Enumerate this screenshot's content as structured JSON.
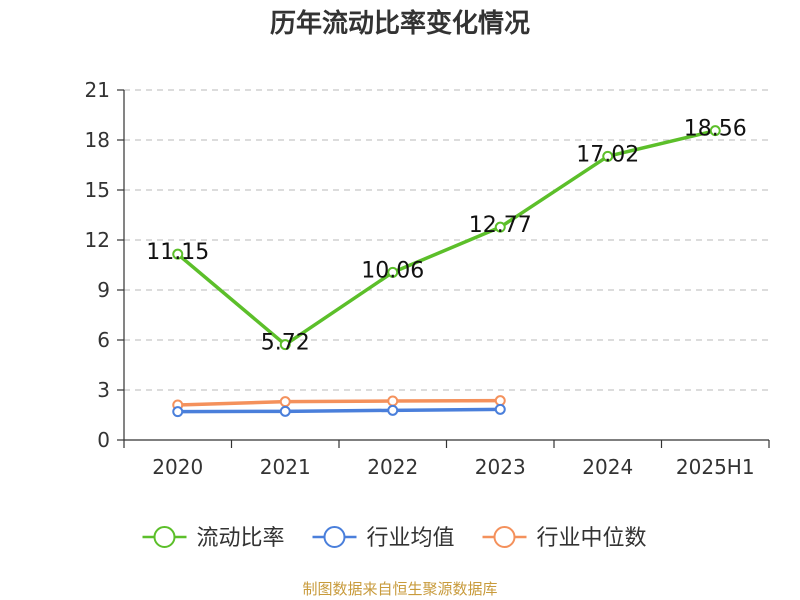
{
  "chart_data": {
    "type": "line",
    "title": "历年流动比率变化情况",
    "xlabel": "",
    "ylabel": "",
    "categories": [
      "2020",
      "2021",
      "2022",
      "2023",
      "2024",
      "2025H1"
    ],
    "ylim": [
      0,
      21
    ],
    "yticks": [
      0,
      3,
      6,
      9,
      12,
      15,
      18,
      21
    ],
    "grid": true,
    "legend_position": "bottom",
    "series": [
      {
        "name": "流动比率",
        "color": "#5cbf2a",
        "values": [
          11.15,
          5.72,
          10.06,
          12.77,
          17.02,
          18.56
        ],
        "labels": [
          "11.15",
          "5.72",
          "10.06",
          "12.77",
          "17.02",
          "18.56"
        ],
        "show_labels": true
      },
      {
        "name": "行业均值",
        "color": "#4a7fdb",
        "values": [
          1.7,
          1.72,
          1.78,
          1.84,
          null,
          null
        ],
        "show_labels": false
      },
      {
        "name": "行业中位数",
        "color": "#f4915c",
        "values": [
          2.1,
          2.3,
          2.34,
          2.36,
          null,
          null
        ],
        "show_labels": false
      }
    ]
  },
  "source_note": "制图数据来自恒生聚源数据库"
}
